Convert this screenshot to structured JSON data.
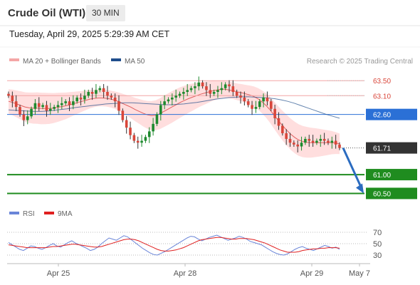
{
  "header": {
    "instrument": "Crude Oil (WTI)",
    "timeframe": "30 MIN",
    "timestamp": "Tuesday, April 29, 2025 5:29:39 AM CET"
  },
  "legend": {
    "bollinger_label": "MA 20 + Bollinger Bands",
    "ma50_label": "MA 50",
    "credit": "Research © 2025 Trading Central"
  },
  "colors": {
    "up": "#1e8a2e",
    "down": "#d9463a",
    "bollinger_band": "#ffd3d3",
    "bollinger_line": "#f0a0a0",
    "ma20_line": "#e06060",
    "ma50_line": "#1f4e8c",
    "resistance": "#f4a6a6",
    "pivot": "#2b70d6",
    "support": "#1f8c1f",
    "rsi": "#6a85d8",
    "rsi_ma": "#e02020",
    "arrow": "#2b6cc0"
  },
  "chart_data": [
    {
      "type": "candlestick",
      "title": "Crude Oil (WTI)",
      "timeframe": "30 MIN",
      "x_labels": [
        "Apr 25",
        "Apr 28",
        "Apr 29",
        "May 7"
      ],
      "ylim": [
        60.3,
        63.75
      ],
      "price_levels": [
        {
          "value": 63.5,
          "label": "63.50",
          "role": "resistance"
        },
        {
          "value": 63.1,
          "label": "63.10",
          "role": "resistance"
        },
        {
          "value": 62.6,
          "label": "62.60",
          "role": "pivot"
        },
        {
          "value": 61.71,
          "label": "61.71",
          "role": "last"
        },
        {
          "value": 61.0,
          "label": "61.00",
          "role": "support"
        },
        {
          "value": 60.5,
          "label": "60.50",
          "role": "support"
        }
      ],
      "close_series": [
        63.1,
        62.95,
        62.8,
        62.6,
        62.45,
        62.55,
        62.75,
        62.9,
        62.8,
        62.85,
        62.7,
        62.75,
        62.8,
        62.85,
        62.9,
        62.95,
        62.85,
        62.95,
        63.05,
        63.0,
        63.1,
        63.2,
        63.15,
        63.25,
        63.3,
        63.2,
        63.1,
        63.05,
        62.95,
        62.7,
        62.45,
        62.25,
        62.05,
        61.9,
        61.85,
        61.9,
        62.0,
        62.15,
        62.35,
        62.6,
        62.85,
        62.95,
        63.0,
        63.05,
        63.1,
        63.15,
        63.2,
        63.25,
        63.3,
        63.35,
        63.45,
        63.35,
        63.25,
        63.15,
        63.2,
        63.25,
        63.3,
        63.4,
        63.35,
        63.2,
        63.1,
        63.05,
        62.95,
        62.85,
        62.75,
        62.8,
        62.95,
        63.05,
        62.95,
        62.75,
        62.5,
        62.3,
        62.1,
        61.95,
        61.85,
        61.8,
        61.75,
        61.85,
        61.95,
        61.9,
        61.85,
        61.9,
        61.95,
        61.9,
        61.85,
        61.9,
        61.8,
        61.71
      ],
      "ma20_series": [
        62.95,
        62.92,
        62.88,
        62.84,
        62.8,
        62.78,
        62.77,
        62.77,
        62.76,
        62.76,
        62.76,
        62.77,
        62.79,
        62.81,
        62.83,
        62.86,
        62.89,
        62.92,
        62.95,
        62.98,
        63.01,
        63.03,
        63.04,
        63.04,
        63.03,
        63.01,
        62.98,
        62.94,
        62.89,
        62.84,
        62.79,
        62.73,
        62.68,
        62.63,
        62.59,
        62.57,
        62.58,
        62.62,
        62.68,
        62.74,
        62.8,
        62.86,
        62.92,
        62.97,
        63.02,
        63.06,
        63.1,
        63.14,
        63.17,
        63.2,
        63.23,
        63.25,
        63.27,
        63.27,
        63.25,
        63.23,
        63.2,
        63.18,
        63.15,
        63.12,
        63.08,
        63.02,
        62.94,
        62.84,
        62.72,
        62.58,
        62.44,
        62.31,
        62.19,
        62.08,
        61.99,
        61.92,
        61.88,
        61.86,
        61.85,
        61.85,
        61.85,
        61.85,
        61.85,
        61.85,
        61.84,
        61.82
      ],
      "ma50_series": [
        62.72,
        62.71,
        62.7,
        62.69,
        62.68,
        62.68,
        62.69,
        62.71,
        62.73,
        62.75,
        62.78,
        62.8,
        62.82,
        62.84,
        62.86,
        62.88,
        62.89,
        62.9,
        62.91,
        62.91,
        62.9,
        62.89,
        62.88,
        62.87,
        62.86,
        62.86,
        62.87,
        62.88,
        62.9,
        62.92,
        62.95,
        62.98,
        63.01,
        63.03,
        63.05,
        63.06,
        63.07,
        63.07,
        63.06,
        63.05,
        63.04,
        63.02,
        62.99,
        62.95,
        62.9,
        62.84,
        62.78,
        62.72,
        62.66,
        62.6,
        62.55,
        62.5
      ],
      "rsi": {
        "legend": [
          "RSI",
          "9MA"
        ],
        "levels": [
          70,
          50,
          30
        ],
        "level_labels": [
          "70",
          "50",
          "30"
        ],
        "ylim": [
          20,
          80
        ],
        "rsi_series": [
          52,
          48,
          44,
          40,
          38,
          42,
          46,
          45,
          42,
          40,
          43,
          47,
          50,
          46,
          44,
          48,
          52,
          55,
          51,
          48,
          45,
          42,
          38,
          40,
          44,
          50,
          55,
          60,
          58,
          56,
          60,
          64,
          62,
          57,
          52,
          47,
          42,
          38,
          34,
          31,
          30,
          33,
          36,
          40,
          44,
          48,
          52,
          56,
          60,
          63,
          62,
          58,
          55,
          58,
          61,
          63,
          65,
          62,
          59,
          56,
          58,
          60,
          63,
          61,
          58,
          54,
          52,
          50,
          48,
          44,
          40,
          36,
          33,
          31,
          30,
          32,
          36,
          40,
          43,
          45,
          42,
          40,
          38,
          41,
          44,
          47,
          45,
          42,
          44,
          40
        ],
        "rsi_ma_series": [
          48,
          47,
          46,
          45,
          44,
          43,
          43,
          43,
          43,
          43,
          43,
          44,
          45,
          45,
          46,
          47,
          48,
          49,
          49,
          48,
          47,
          46,
          45,
          44,
          44,
          45,
          47,
          49,
          51,
          53,
          55,
          57,
          58,
          58,
          57,
          55,
          52,
          49,
          46,
          43,
          40,
          38,
          37,
          37,
          38,
          39,
          41,
          43,
          46,
          49,
          52,
          55,
          57,
          58,
          59,
          60,
          61,
          61,
          60,
          59,
          58,
          58,
          59,
          59,
          59,
          58,
          57,
          55,
          53,
          51,
          48,
          45,
          42,
          39,
          37,
          35,
          35,
          35,
          36,
          38,
          39,
          40,
          41,
          41,
          42,
          42,
          43,
          43,
          43,
          42
        ]
      }
    }
  ]
}
